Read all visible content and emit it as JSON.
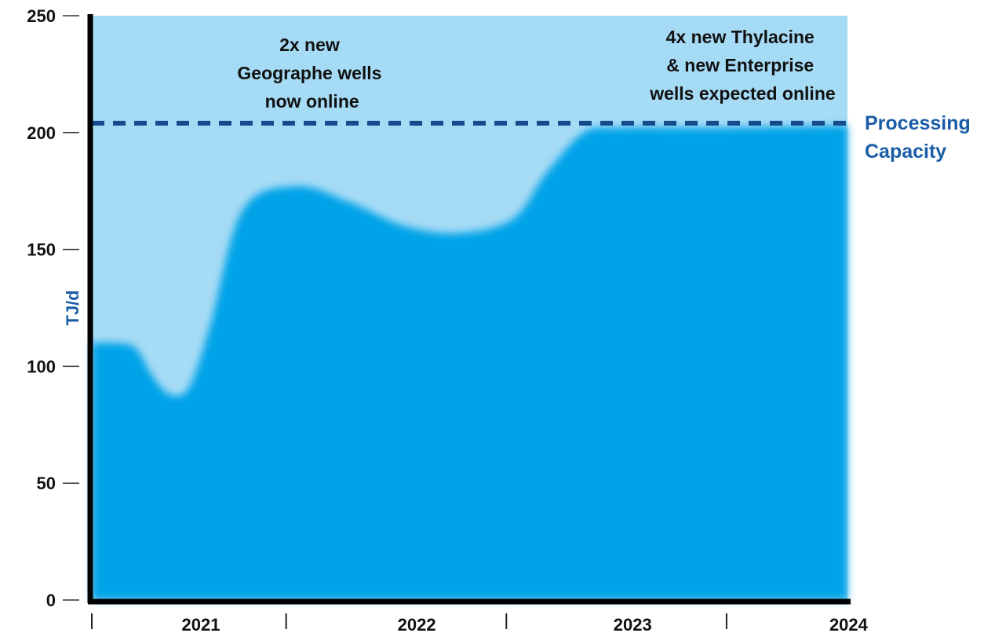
{
  "colors": {
    "background_band": "#a6dbf5",
    "area_fill": "#00a3e8",
    "reference_line": "#154b8c",
    "axis": "#000000",
    "label_blue": "#1a5da6"
  },
  "chart_data": {
    "type": "area",
    "xlabel": "",
    "ylabel": "TJ/d",
    "ylim": [
      0,
      250
    ],
    "yticks": [
      0,
      50,
      100,
      150,
      200,
      250
    ],
    "xlim": [
      2020.5,
      2024.0
    ],
    "year_labels": [
      {
        "label": "2021",
        "x": 2020.5
      },
      {
        "label": "2022",
        "x": 2021.5
      },
      {
        "label": "2023",
        "x": 2022.5
      },
      {
        "label": "2024",
        "x": 2023.5
      }
    ],
    "year_boundaries": [
      2020.5,
      2021.4,
      2022.42,
      2023.44
    ],
    "grid": false,
    "series": [
      {
        "x": [
          2020.5,
          2020.59,
          2020.7,
          2020.78,
          2020.86,
          2020.95,
          2021.05,
          2021.2,
          2021.45,
          2021.7,
          2021.95,
          2022.2,
          2022.45,
          2022.6,
          2022.78,
          2022.95,
          2023.4,
          2024.0
        ],
        "y": [
          110,
          110,
          108,
          96,
          88,
          91,
          118,
          167,
          177,
          170,
          160,
          157,
          163,
          182,
          200,
          202,
          202,
          203
        ]
      }
    ],
    "reference_line": {
      "label_line1": "Processing",
      "label_line2": "Capacity",
      "value": 204
    },
    "annotations": [
      {
        "lines": [
          "2x new",
          "Geographe wells",
          "now online"
        ],
        "x": 2021.4
      },
      {
        "lines": [
          "4x new Thylacine",
          "& new Enterprise",
          "wells expected online"
        ],
        "x": 2023.5
      }
    ]
  }
}
